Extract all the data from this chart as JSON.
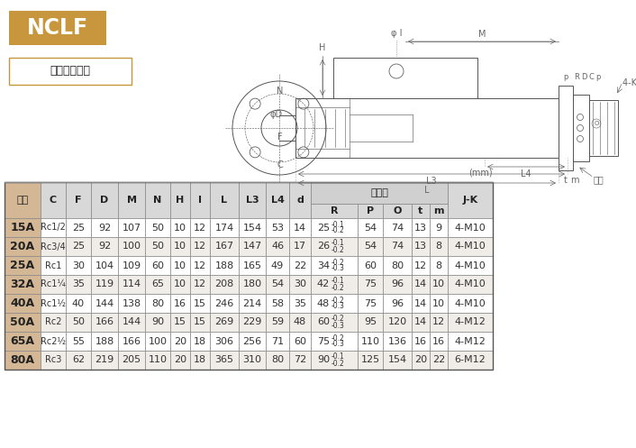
{
  "title": "NCLF",
  "subtitle": "单式法兰安装",
  "title_bg": "#C8963C",
  "subtitle_border": "#C8963C",
  "mm_label": "(mm)",
  "flange_label": "法兰部",
  "rows": [
    [
      "15A",
      "Rc1/2",
      "25",
      "92",
      "107",
      "50",
      "10",
      "12",
      "174",
      "154",
      "53",
      "14",
      "25",
      "-0.1",
      "-0.2",
      "54",
      "74",
      "13",
      "9",
      "4-M10"
    ],
    [
      "20A",
      "Rc3/4",
      "25",
      "92",
      "100",
      "50",
      "10",
      "12",
      "167",
      "147",
      "46",
      "17",
      "26",
      "-0.1",
      "-0.2",
      "54",
      "74",
      "13",
      "8",
      "4-M10"
    ],
    [
      "25A",
      "Rc1",
      "30",
      "104",
      "109",
      "60",
      "10",
      "12",
      "188",
      "165",
      "49",
      "22",
      "34",
      "-0.2",
      "-0.3",
      "60",
      "80",
      "12",
      "8",
      "4-M10"
    ],
    [
      "32A",
      "Rc1¼",
      "35",
      "119",
      "114",
      "65",
      "10",
      "12",
      "208",
      "180",
      "54",
      "30",
      "42",
      "-0.1",
      "-0.2",
      "75",
      "96",
      "14",
      "10",
      "4-M10"
    ],
    [
      "40A",
      "Rc1½",
      "40",
      "144",
      "138",
      "80",
      "16",
      "15",
      "246",
      "214",
      "58",
      "35",
      "48",
      "-0.2",
      "-0.3",
      "75",
      "96",
      "14",
      "10",
      "4-M10"
    ],
    [
      "50A",
      "Rc2",
      "50",
      "166",
      "144",
      "90",
      "15",
      "15",
      "269",
      "229",
      "59",
      "48",
      "60",
      "-0.2",
      "-0.3",
      "95",
      "120",
      "14",
      "12",
      "4-M12"
    ],
    [
      "65A",
      "Rc2½",
      "55",
      "188",
      "166",
      "100",
      "20",
      "18",
      "306",
      "256",
      "71",
      "60",
      "75",
      "-0.2",
      "-0.3",
      "110",
      "136",
      "16",
      "16",
      "4-M12"
    ],
    [
      "80A",
      "Rc3",
      "62",
      "219",
      "205",
      "110",
      "20",
      "18",
      "365",
      "310",
      "80",
      "72",
      "90",
      "-0.1",
      "-0.2",
      "125",
      "154",
      "20",
      "22",
      "6-M12"
    ]
  ],
  "header_bg": "#D8D8D8",
  "flange_header_bg": "#D8D8D8",
  "size_col_bg": "#D4B896",
  "row_bg_odd": "#FFFFFF",
  "row_bg_even": "#F0EDE8",
  "border_color": "#888888",
  "draw_color": "#555555",
  "bg_color": "#FFFFFF"
}
